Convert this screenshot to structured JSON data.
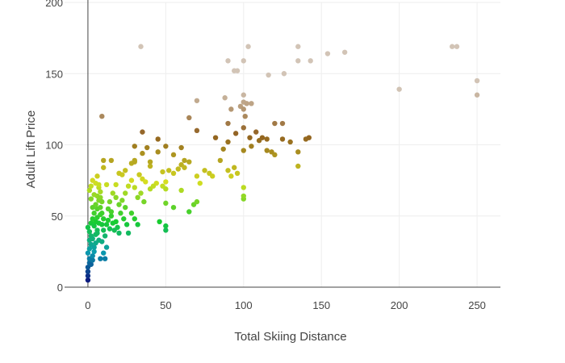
{
  "chart_data": {
    "type": "scatter",
    "title": "",
    "xlabel": "Total Skiing Distance",
    "ylabel": "Adult Lift Price",
    "xlim": [
      -15,
      265
    ],
    "ylim": [
      0,
      200
    ],
    "xticks": [
      0,
      50,
      100,
      150,
      200,
      250
    ],
    "yticks": [
      0,
      50,
      100,
      150,
      200
    ],
    "grid": true,
    "legend": "none",
    "colorscale": [
      "#0d1d80",
      "#0b9bb0",
      "#18cc30",
      "#d5de20",
      "#906020",
      "#d2c4b6"
    ],
    "points": [
      [
        0,
        5
      ],
      [
        0,
        8
      ],
      [
        0,
        11
      ],
      [
        0,
        14
      ],
      [
        1,
        17
      ],
      [
        1,
        20
      ],
      [
        0,
        24
      ],
      [
        1,
        27
      ],
      [
        2,
        30
      ],
      [
        1,
        33
      ],
      [
        2,
        36
      ],
      [
        1,
        39
      ],
      [
        0,
        42
      ],
      [
        2,
        45
      ],
      [
        3,
        48
      ],
      [
        2,
        16
      ],
      [
        3,
        19
      ],
      [
        3,
        22
      ],
      [
        4,
        25
      ],
      [
        4,
        28
      ],
      [
        5,
        31
      ],
      [
        3,
        34
      ],
      [
        5,
        37
      ],
      [
        6,
        40
      ],
      [
        4,
        43
      ],
      [
        5,
        46
      ],
      [
        6,
        49
      ],
      [
        4,
        52
      ],
      [
        6,
        55
      ],
      [
        5,
        58
      ],
      [
        7,
        61
      ],
      [
        6,
        64
      ],
      [
        8,
        67
      ],
      [
        7,
        70
      ],
      [
        5,
        73
      ],
      [
        3,
        75
      ],
      [
        4,
        65
      ],
      [
        7,
        72
      ],
      [
        8,
        63
      ],
      [
        9,
        60
      ],
      [
        8,
        56
      ],
      [
        9,
        52
      ],
      [
        10,
        48
      ],
      [
        9,
        44
      ],
      [
        10,
        40
      ],
      [
        11,
        36
      ],
      [
        9,
        32
      ],
      [
        12,
        28
      ],
      [
        10,
        24
      ],
      [
        8,
        20
      ],
      [
        11,
        20
      ],
      [
        7,
        33
      ],
      [
        6,
        38
      ],
      [
        7,
        45
      ],
      [
        8,
        51
      ],
      [
        3,
        56
      ],
      [
        2,
        62
      ],
      [
        1,
        68
      ],
      [
        2,
        71
      ],
      [
        12,
        44
      ],
      [
        13,
        47
      ],
      [
        14,
        41
      ],
      [
        15,
        50
      ],
      [
        16,
        45
      ],
      [
        17,
        40
      ],
      [
        18,
        46
      ],
      [
        19,
        42
      ],
      [
        20,
        38
      ],
      [
        13,
        55
      ],
      [
        14,
        60
      ],
      [
        15,
        53
      ],
      [
        16,
        66
      ],
      [
        18,
        63
      ],
      [
        20,
        58
      ],
      [
        22,
        61
      ],
      [
        24,
        56
      ],
      [
        21,
        52
      ],
      [
        23,
        48
      ],
      [
        25,
        44
      ],
      [
        26,
        38
      ],
      [
        28,
        52
      ],
      [
        30,
        48
      ],
      [
        32,
        44
      ],
      [
        24,
        66
      ],
      [
        26,
        71
      ],
      [
        28,
        75
      ],
      [
        22,
        79
      ],
      [
        30,
        70
      ],
      [
        32,
        63
      ],
      [
        34,
        66
      ],
      [
        36,
        60
      ],
      [
        40,
        69
      ],
      [
        44,
        73
      ],
      [
        48,
        71
      ],
      [
        20,
        80
      ],
      [
        24,
        82
      ],
      [
        28,
        87
      ],
      [
        30,
        89
      ],
      [
        33,
        79
      ],
      [
        35,
        76
      ],
      [
        37,
        74
      ],
      [
        42,
        71
      ],
      [
        46,
        46
      ],
      [
        50,
        43
      ],
      [
        50,
        40
      ],
      [
        55,
        56
      ],
      [
        50,
        59
      ],
      [
        60,
        68
      ],
      [
        65,
        53
      ],
      [
        68,
        58
      ],
      [
        70,
        60
      ],
      [
        50,
        74
      ],
      [
        50,
        69
      ],
      [
        55,
        80
      ],
      [
        60,
        86
      ],
      [
        62,
        84
      ],
      [
        65,
        88
      ],
      [
        70,
        78
      ],
      [
        72,
        73
      ],
      [
        75,
        82
      ],
      [
        78,
        80
      ],
      [
        80,
        78
      ],
      [
        85,
        89
      ],
      [
        87,
        97
      ],
      [
        90,
        82
      ],
      [
        92,
        78
      ],
      [
        94,
        84
      ],
      [
        96,
        80
      ],
      [
        100,
        62
      ],
      [
        100,
        64
      ],
      [
        100,
        70
      ],
      [
        10,
        89
      ],
      [
        15,
        89
      ],
      [
        10,
        84
      ],
      [
        6,
        78
      ],
      [
        12,
        72
      ],
      [
        18,
        72
      ],
      [
        30,
        99
      ],
      [
        35,
        94
      ],
      [
        40,
        85
      ],
      [
        45,
        95
      ],
      [
        50,
        99
      ],
      [
        55,
        93
      ],
      [
        60,
        98
      ],
      [
        40,
        88
      ],
      [
        30,
        88
      ],
      [
        38,
        98
      ],
      [
        45,
        104
      ],
      [
        48,
        81
      ],
      [
        52,
        82
      ],
      [
        58,
        83
      ],
      [
        62,
        89
      ],
      [
        100,
        96
      ],
      [
        105,
        99
      ],
      [
        110,
        103
      ],
      [
        115,
        96
      ],
      [
        120,
        93
      ],
      [
        118,
        95
      ],
      [
        125,
        104
      ],
      [
        130,
        102
      ],
      [
        135,
        95
      ],
      [
        140,
        104
      ],
      [
        142,
        105
      ],
      [
        135,
        85
      ],
      [
        90,
        102
      ],
      [
        95,
        108
      ],
      [
        100,
        112
      ],
      [
        104,
        105
      ],
      [
        108,
        109
      ],
      [
        112,
        105
      ],
      [
        115,
        104
      ],
      [
        120,
        115
      ],
      [
        125,
        115
      ],
      [
        90,
        115
      ],
      [
        70,
        110
      ],
      [
        65,
        119
      ],
      [
        70,
        131
      ],
      [
        9,
        120
      ],
      [
        35,
        109
      ],
      [
        82,
        105
      ],
      [
        88,
        133
      ],
      [
        92,
        125
      ],
      [
        98,
        127
      ],
      [
        100,
        130
      ],
      [
        102,
        129
      ],
      [
        100,
        125
      ],
      [
        100,
        135
      ],
      [
        101,
        120
      ],
      [
        105,
        129
      ],
      [
        34,
        169
      ],
      [
        90,
        159
      ],
      [
        94,
        152
      ],
      [
        96,
        152
      ],
      [
        100,
        159
      ],
      [
        103,
        169
      ],
      [
        116,
        149
      ],
      [
        126,
        150
      ],
      [
        135,
        159
      ],
      [
        135,
        169
      ],
      [
        143,
        159
      ],
      [
        154,
        164
      ],
      [
        165,
        165
      ],
      [
        200,
        139
      ],
      [
        234,
        169
      ],
      [
        237,
        169
      ],
      [
        250,
        145
      ],
      [
        250,
        135
      ]
    ]
  }
}
